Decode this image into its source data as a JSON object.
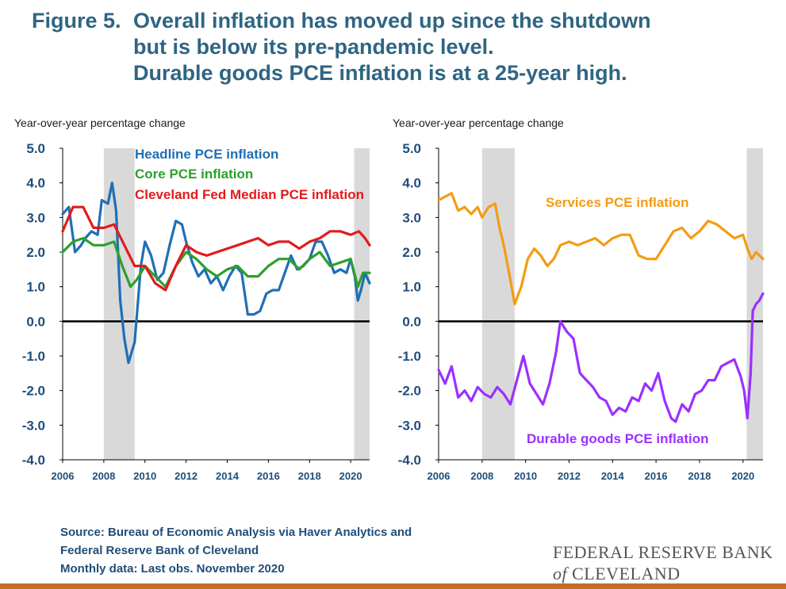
{
  "title": {
    "label": "Figure 5.",
    "line1": "Overall inflation has moved up since the shutdown",
    "line2": "but is below its pre-pandemic level.",
    "line3": "Durable goods PCE inflation is at a 25-year high."
  },
  "colors": {
    "headline": "#1f6fb5",
    "core": "#2ca02c",
    "median": "#e31a1c",
    "services": "#f39c12",
    "durable": "#9b30ff",
    "recession": "#d9d9d9",
    "title": "#2f6583"
  },
  "chart_data": [
    {
      "type": "line",
      "ylabel": "Year-over-year percentage change",
      "ylim": [
        -4,
        5
      ],
      "xlim": [
        2006,
        2020.92
      ],
      "x_ticks": [
        "2006",
        "2008",
        "2010",
        "2012",
        "2014",
        "2016",
        "2018",
        "2020"
      ],
      "y_ticks": [
        "5.0",
        "4.0",
        "3.0",
        "2.0",
        "1.0",
        "0.0",
        "-1.0",
        "-2.0",
        "-3.0",
        "-4.0"
      ],
      "recessions": [
        [
          2008.0,
          2009.5
        ],
        [
          2020.17,
          2020.92
        ]
      ],
      "legend_placement": "top-left",
      "series": [
        {
          "name": "Headline PCE inflation",
          "color": "#1f6fb5",
          "x": [
            2006.0,
            2006.3,
            2006.6,
            2006.9,
            2007.1,
            2007.4,
            2007.7,
            2007.9,
            2008.2,
            2008.4,
            2008.6,
            2008.8,
            2009.0,
            2009.2,
            2009.5,
            2009.8,
            2010.0,
            2010.3,
            2010.6,
            2010.9,
            2011.2,
            2011.5,
            2011.8,
            2012.0,
            2012.3,
            2012.6,
            2012.9,
            2013.2,
            2013.5,
            2013.8,
            2014.1,
            2014.4,
            2014.7,
            2015.0,
            2015.3,
            2015.6,
            2015.9,
            2016.2,
            2016.5,
            2016.8,
            2017.1,
            2017.4,
            2017.7,
            2018.0,
            2018.3,
            2018.6,
            2018.9,
            2019.2,
            2019.5,
            2019.8,
            2020.0,
            2020.2,
            2020.35,
            2020.5,
            2020.7,
            2020.92
          ],
          "y": [
            3.1,
            3.3,
            2.0,
            2.2,
            2.4,
            2.6,
            2.5,
            3.5,
            3.4,
            4.0,
            3.2,
            0.6,
            -0.5,
            -1.2,
            -0.6,
            1.6,
            2.3,
            1.9,
            1.2,
            1.4,
            2.2,
            2.9,
            2.8,
            2.3,
            1.7,
            1.3,
            1.5,
            1.1,
            1.3,
            0.9,
            1.3,
            1.6,
            1.4,
            0.2,
            0.2,
            0.3,
            0.8,
            0.9,
            0.9,
            1.4,
            1.9,
            1.5,
            1.6,
            1.8,
            2.3,
            2.3,
            1.9,
            1.4,
            1.5,
            1.4,
            1.8,
            1.3,
            0.6,
            0.9,
            1.4,
            1.1
          ]
        },
        {
          "name": "Core PCE inflation",
          "color": "#2ca02c",
          "x": [
            2006.0,
            2006.5,
            2007.0,
            2007.5,
            2008.0,
            2008.5,
            2008.9,
            2009.3,
            2009.6,
            2010.0,
            2010.5,
            2011.0,
            2011.5,
            2012.0,
            2012.5,
            2013.0,
            2013.5,
            2014.0,
            2014.5,
            2015.0,
            2015.5,
            2016.0,
            2016.5,
            2017.0,
            2017.5,
            2018.0,
            2018.5,
            2019.0,
            2019.5,
            2020.0,
            2020.35,
            2020.6,
            2020.92
          ],
          "y": [
            2.0,
            2.3,
            2.4,
            2.2,
            2.2,
            2.3,
            1.6,
            1.0,
            1.2,
            1.6,
            1.3,
            1.0,
            1.6,
            2.0,
            1.8,
            1.5,
            1.3,
            1.5,
            1.6,
            1.3,
            1.3,
            1.6,
            1.8,
            1.8,
            1.5,
            1.8,
            2.0,
            1.6,
            1.7,
            1.8,
            1.0,
            1.4,
            1.4
          ]
        },
        {
          "name": "Cleveland Fed Median PCE inflation",
          "color": "#e31a1c",
          "x": [
            2006.0,
            2006.5,
            2007.0,
            2007.5,
            2008.0,
            2008.5,
            2009.0,
            2009.5,
            2010.0,
            2010.5,
            2011.0,
            2011.5,
            2012.0,
            2012.5,
            2013.0,
            2013.5,
            2014.0,
            2014.5,
            2015.0,
            2015.5,
            2016.0,
            2016.5,
            2017.0,
            2017.5,
            2018.0,
            2018.5,
            2019.0,
            2019.5,
            2020.0,
            2020.4,
            2020.7,
            2020.92
          ],
          "y": [
            2.6,
            3.3,
            3.3,
            2.7,
            2.7,
            2.8,
            2.2,
            1.6,
            1.6,
            1.1,
            0.9,
            1.6,
            2.2,
            2.0,
            1.9,
            2.0,
            2.1,
            2.2,
            2.3,
            2.4,
            2.2,
            2.3,
            2.3,
            2.1,
            2.3,
            2.4,
            2.6,
            2.6,
            2.5,
            2.6,
            2.4,
            2.2
          ]
        }
      ]
    },
    {
      "type": "line",
      "ylabel": "Year-over-year percentage change",
      "ylim": [
        -4,
        5
      ],
      "xlim": [
        2006,
        2020.92
      ],
      "x_ticks": [
        "2006",
        "2008",
        "2010",
        "2012",
        "2014",
        "2016",
        "2018",
        "2020"
      ],
      "y_ticks": [
        "5.0",
        "4.0",
        "3.0",
        "2.0",
        "1.0",
        "0.0",
        "-1.0",
        "-2.0",
        "-3.0",
        "-4.0"
      ],
      "recessions": [
        [
          2008.0,
          2009.5
        ],
        [
          2020.17,
          2020.92
        ]
      ],
      "series": [
        {
          "name": "Services PCE inflation",
          "color": "#f39c12",
          "x": [
            2006.0,
            2006.3,
            2006.6,
            2006.9,
            2007.2,
            2007.5,
            2007.8,
            2008.0,
            2008.3,
            2008.6,
            2008.8,
            2009.0,
            2009.3,
            2009.5,
            2009.8,
            2010.1,
            2010.4,
            2010.7,
            2011.0,
            2011.3,
            2011.6,
            2012.0,
            2012.4,
            2012.8,
            2013.2,
            2013.6,
            2014.0,
            2014.4,
            2014.8,
            2015.2,
            2015.6,
            2016.0,
            2016.4,
            2016.8,
            2017.2,
            2017.6,
            2018.0,
            2018.4,
            2018.8,
            2019.2,
            2019.6,
            2020.0,
            2020.2,
            2020.4,
            2020.6,
            2020.92
          ],
          "y": [
            3.5,
            3.6,
            3.7,
            3.2,
            3.3,
            3.1,
            3.3,
            3.0,
            3.3,
            3.4,
            2.7,
            2.2,
            1.2,
            0.5,
            1.0,
            1.8,
            2.1,
            1.9,
            1.6,
            1.8,
            2.2,
            2.3,
            2.2,
            2.3,
            2.4,
            2.2,
            2.4,
            2.5,
            2.5,
            1.9,
            1.8,
            1.8,
            2.2,
            2.6,
            2.7,
            2.4,
            2.6,
            2.9,
            2.8,
            2.6,
            2.4,
            2.5,
            2.1,
            1.8,
            2.0,
            1.8
          ]
        },
        {
          "name": "Durable goods PCE inflation",
          "color": "#9b30ff",
          "x": [
            2006.0,
            2006.3,
            2006.6,
            2006.9,
            2007.2,
            2007.5,
            2007.8,
            2008.1,
            2008.4,
            2008.7,
            2009.0,
            2009.3,
            2009.6,
            2009.9,
            2010.2,
            2010.5,
            2010.8,
            2011.1,
            2011.4,
            2011.6,
            2011.9,
            2012.2,
            2012.5,
            2012.8,
            2013.1,
            2013.4,
            2013.7,
            2014.0,
            2014.3,
            2014.6,
            2014.9,
            2015.2,
            2015.5,
            2015.8,
            2016.1,
            2016.4,
            2016.7,
            2016.9,
            2017.2,
            2017.5,
            2017.8,
            2018.1,
            2018.4,
            2018.7,
            2019.0,
            2019.3,
            2019.6,
            2019.9,
            2020.05,
            2020.2,
            2020.35,
            2020.45,
            2020.6,
            2020.75,
            2020.92
          ],
          "y": [
            -1.4,
            -1.8,
            -1.3,
            -2.2,
            -2.0,
            -2.3,
            -1.9,
            -2.1,
            -2.2,
            -1.9,
            -2.1,
            -2.4,
            -1.7,
            -1.0,
            -1.8,
            -2.1,
            -2.4,
            -1.8,
            -0.9,
            0.0,
            -0.3,
            -0.5,
            -1.5,
            -1.7,
            -1.9,
            -2.2,
            -2.3,
            -2.7,
            -2.5,
            -2.6,
            -2.2,
            -2.3,
            -1.8,
            -2.0,
            -1.5,
            -2.3,
            -2.8,
            -2.9,
            -2.4,
            -2.6,
            -2.1,
            -2.0,
            -1.7,
            -1.7,
            -1.3,
            -1.2,
            -1.1,
            -1.6,
            -2.0,
            -2.8,
            -1.5,
            0.3,
            0.5,
            0.6,
            0.8
          ]
        }
      ]
    }
  ],
  "labels": {
    "left": [
      {
        "text": "Headline PCE inflation",
        "color": "#1f6fb5"
      },
      {
        "text": "Core PCE inflation",
        "color": "#2ca02c"
      },
      {
        "text": "Cleveland Fed Median PCE inflation",
        "color": "#e31a1c"
      }
    ],
    "right": [
      {
        "text": "Services PCE inflation",
        "color": "#f39c12"
      },
      {
        "text": "Durable goods PCE inflation",
        "color": "#9b30ff"
      }
    ]
  },
  "source": {
    "line1": "Source: Bureau of Economic Analysis via Haver Analytics and",
    "line2": "Federal Reserve Bank of Cleveland",
    "line3": "Monthly data: Last obs. November 2020"
  },
  "brand": {
    "line1": "FEDERAL RESERVE BANK",
    "of": "of",
    "line2": "CLEVELAND"
  }
}
